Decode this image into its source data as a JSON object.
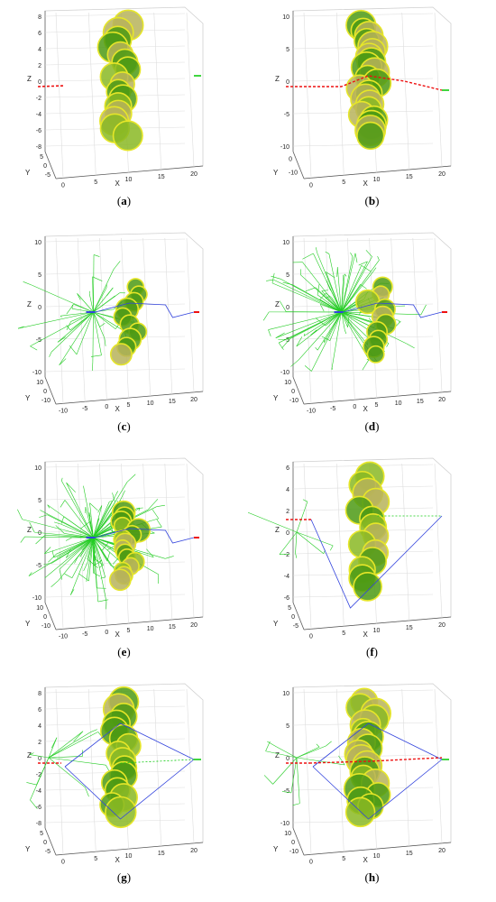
{
  "chart_data": [
    {
      "type": "scatter",
      "panel": "a",
      "caption": "a",
      "xlabel": "X",
      "ylabel": "Y",
      "zlabel": "Z",
      "x_ticks": [
        "0",
        "5",
        "10",
        "15",
        "20"
      ],
      "y_ticks": [
        "5",
        "0",
        "-5"
      ],
      "z_ticks": [
        "8",
        "6",
        "4",
        "2",
        "0",
        "-2",
        "-4",
        "-6",
        "-8"
      ],
      "obstacle_count": 16,
      "trees": false,
      "path_style": "stub"
    },
    {
      "type": "scatter",
      "panel": "b",
      "caption": "b",
      "xlabel": "X",
      "ylabel": "Y",
      "zlabel": "Z",
      "x_ticks": [
        "0",
        "5",
        "10",
        "15",
        "20"
      ],
      "y_ticks": [
        "0",
        "-10"
      ],
      "z_ticks": [
        "10",
        "5",
        "0",
        "-5",
        "-10"
      ],
      "obstacle_count": 22,
      "trees": false,
      "path_style": "through"
    },
    {
      "type": "scatter",
      "panel": "c",
      "caption": "c",
      "xlabel": "X",
      "ylabel": "Y",
      "zlabel": "Z",
      "x_ticks": [
        "-10",
        "-5",
        "0",
        "5",
        "10",
        "15",
        "20"
      ],
      "y_ticks": [
        "10",
        "0",
        "-10"
      ],
      "z_ticks": [
        "10",
        "5",
        "0",
        "-5",
        "-10"
      ],
      "obstacle_count": 10,
      "trees": true,
      "tree_density": 30,
      "path_style": "search"
    },
    {
      "type": "scatter",
      "panel": "d",
      "caption": "d",
      "xlabel": "X",
      "ylabel": "Y",
      "zlabel": "Z",
      "x_ticks": [
        "-10",
        "-5",
        "0",
        "5",
        "10",
        "15",
        "20"
      ],
      "y_ticks": [
        "10",
        "0",
        "-10"
      ],
      "z_ticks": [
        "10",
        "5",
        "0",
        "-5",
        "-10"
      ],
      "obstacle_count": 10,
      "trees": true,
      "tree_density": 70,
      "path_style": "search"
    },
    {
      "type": "scatter",
      "panel": "e",
      "caption": "e",
      "xlabel": "X",
      "ylabel": "Y",
      "zlabel": "Z",
      "x_ticks": [
        "-10",
        "-5",
        "0",
        "5",
        "10",
        "15",
        "20"
      ],
      "y_ticks": [
        "10",
        "0",
        "-10"
      ],
      "z_ticks": [
        "10",
        "5",
        "0",
        "-5",
        "-10"
      ],
      "obstacle_count": 16,
      "trees": true,
      "tree_density": 90,
      "path_style": "search"
    },
    {
      "type": "scatter",
      "panel": "f",
      "caption": "f",
      "xlabel": "X",
      "ylabel": "Y",
      "zlabel": "Z",
      "x_ticks": [
        "0",
        "5",
        "10",
        "15",
        "20"
      ],
      "y_ticks": [
        "5",
        "0",
        "-5"
      ],
      "z_ticks": [
        "6",
        "4",
        "2",
        "0",
        "-2",
        "-4",
        "-6"
      ],
      "obstacle_count": 14,
      "trees": true,
      "tree_density": 6,
      "path_style": "v"
    },
    {
      "type": "scatter",
      "panel": "g",
      "caption": "g",
      "xlabel": "X",
      "ylabel": "Y",
      "zlabel": "Z",
      "x_ticks": [
        "0",
        "5",
        "10",
        "15",
        "20"
      ],
      "y_ticks": [
        "5",
        "0",
        "-5"
      ],
      "z_ticks": [
        "8",
        "6",
        "4",
        "2",
        "0",
        "-2",
        "-4",
        "-6",
        "-8"
      ],
      "obstacle_count": 16,
      "trees": true,
      "tree_density": 10,
      "path_style": "fan"
    },
    {
      "type": "scatter",
      "panel": "h",
      "caption": "h",
      "xlabel": "X",
      "ylabel": "Y",
      "zlabel": "Z",
      "x_ticks": [
        "0",
        "5",
        "10",
        "15",
        "20"
      ],
      "y_ticks": [
        "10",
        "0",
        "-10"
      ],
      "z_ticks": [
        "10",
        "5",
        "0",
        "-5",
        "-10"
      ],
      "obstacle_count": 20,
      "trees": true,
      "tree_density": 8,
      "path_style": "fan-through"
    }
  ],
  "colors": {
    "obstacle_fill": "#8ab823",
    "obstacle_fill_dark": "#4c9a14",
    "obstacle_fill_tan": "#b7b35a",
    "obstacle_edge": "#e6e629",
    "tree": "#22cc22",
    "path_blue": "#3344dd",
    "path_red": "#ee1111",
    "goal_green": "#11cc11",
    "grid": "#dddddd",
    "axis_text": "#222222"
  }
}
